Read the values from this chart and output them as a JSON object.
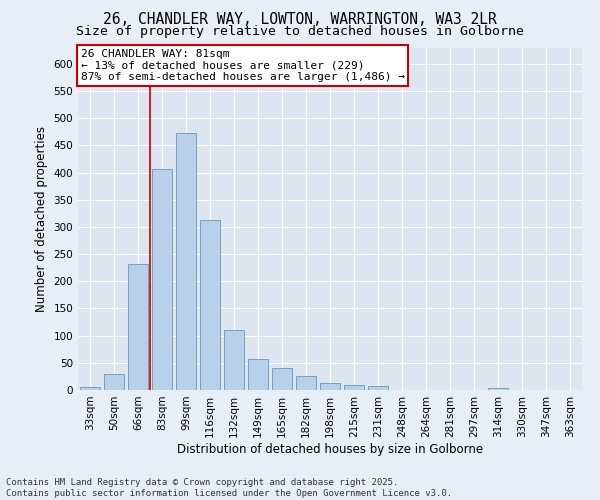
{
  "title_line1": "26, CHANDLER WAY, LOWTON, WARRINGTON, WA3 2LR",
  "title_line2": "Size of property relative to detached houses in Golborne",
  "xlabel": "Distribution of detached houses by size in Golborne",
  "ylabel": "Number of detached properties",
  "categories": [
    "33sqm",
    "50sqm",
    "66sqm",
    "83sqm",
    "99sqm",
    "116sqm",
    "132sqm",
    "149sqm",
    "165sqm",
    "182sqm",
    "198sqm",
    "215sqm",
    "231sqm",
    "248sqm",
    "264sqm",
    "281sqm",
    "297sqm",
    "314sqm",
    "330sqm",
    "347sqm",
    "363sqm"
  ],
  "values": [
    5,
    30,
    232,
    406,
    473,
    312,
    111,
    57,
    41,
    26,
    13,
    10,
    7,
    0,
    0,
    0,
    0,
    3,
    0,
    0,
    0
  ],
  "bar_color": "#b8d0e8",
  "bar_edge_color": "#6699bb",
  "vline_x_index": 2.5,
  "vline_color": "#cc0000",
  "annotation_text": "26 CHANDLER WAY: 81sqm\n← 13% of detached houses are smaller (229)\n87% of semi-detached houses are larger (1,486) →",
  "annotation_box_color": "#ffffff",
  "annotation_box_edge_color": "#cc0000",
  "ylim": [
    0,
    630
  ],
  "yticks": [
    0,
    50,
    100,
    150,
    200,
    250,
    300,
    350,
    400,
    450,
    500,
    550,
    600
  ],
  "background_color": "#dde6f0",
  "fig_background_color": "#e8eef5",
  "footer_text": "Contains HM Land Registry data © Crown copyright and database right 2025.\nContains public sector information licensed under the Open Government Licence v3.0.",
  "title_fontsize": 10.5,
  "subtitle_fontsize": 9.5,
  "axis_label_fontsize": 8.5,
  "tick_fontsize": 7.5,
  "annotation_fontsize": 8,
  "footer_fontsize": 6.5
}
